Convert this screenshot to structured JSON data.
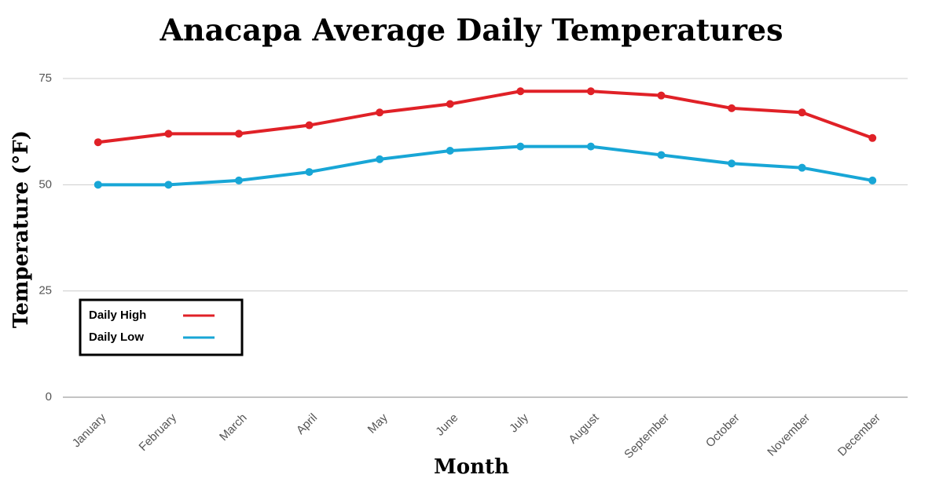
{
  "chart_data": {
    "type": "line",
    "title": "Anacapa Average Daily Temperatures",
    "x_label": "Month",
    "y_label": "Temperature (°F)",
    "categories": [
      "January",
      "February",
      "March",
      "April",
      "May",
      "June",
      "July",
      "August",
      "September",
      "October",
      "November",
      "December"
    ],
    "series": [
      {
        "name": "Daily High",
        "color": "#e02127",
        "values": [
          60,
          62,
          62,
          64,
          67,
          69,
          72,
          72,
          71,
          68,
          67,
          61
        ]
      },
      {
        "name": "Daily Low",
        "color": "#18a6d6",
        "values": [
          50,
          50,
          51,
          53,
          56,
          58,
          59,
          59,
          57,
          55,
          54,
          51
        ]
      }
    ],
    "ylim": [
      0,
      75
    ],
    "yticks": [
      0,
      25,
      50,
      75
    ],
    "grid": true,
    "legend": "lower left"
  }
}
